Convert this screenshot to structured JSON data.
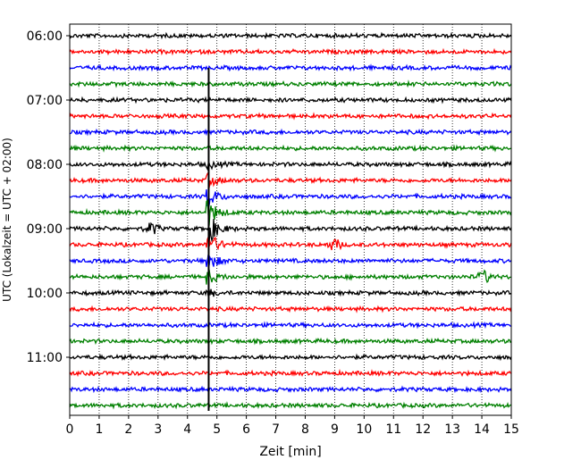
{
  "chart_data": {
    "type": "line",
    "title": "",
    "xlabel": "Zeit  [min]",
    "ylabel": "UTC (Lokalzeit = UTC + 02:00)",
    "xlim": [
      0,
      15
    ],
    "x_ticks": [
      "0",
      "1",
      "2",
      "3",
      "4",
      "5",
      "6",
      "7",
      "8",
      "9",
      "10",
      "11",
      "12",
      "13",
      "14",
      "15"
    ],
    "y_ticks": [
      "06:00",
      "07:00",
      "08:00",
      "09:00",
      "10:00",
      "11:00"
    ],
    "y_tick_row_index": [
      0,
      4,
      8,
      12,
      16,
      20
    ],
    "grid": {
      "vertical_dotted": true
    },
    "trace_colors": [
      "#000000",
      "#ff0000",
      "#0000ff",
      "#008000"
    ],
    "trace_start_times": [
      "06:00",
      "06:15",
      "06:30",
      "06:45",
      "07:00",
      "07:15",
      "07:30",
      "07:45",
      "08:00",
      "08:15",
      "08:30",
      "08:45",
      "09:00",
      "09:15",
      "09:30",
      "09:45",
      "10:00",
      "10:15",
      "10:30",
      "10:45",
      "11:00",
      "11:15",
      "11:30",
      "11:45"
    ],
    "events": [
      {
        "time_min": 4.72,
        "note": "large event crossing traces"
      },
      {
        "time_min": 2.8,
        "trace": "09:00"
      },
      {
        "time_min": 9.0,
        "trace": "09:15"
      },
      {
        "time_min": 14.1,
        "trace": "09:45"
      }
    ]
  }
}
